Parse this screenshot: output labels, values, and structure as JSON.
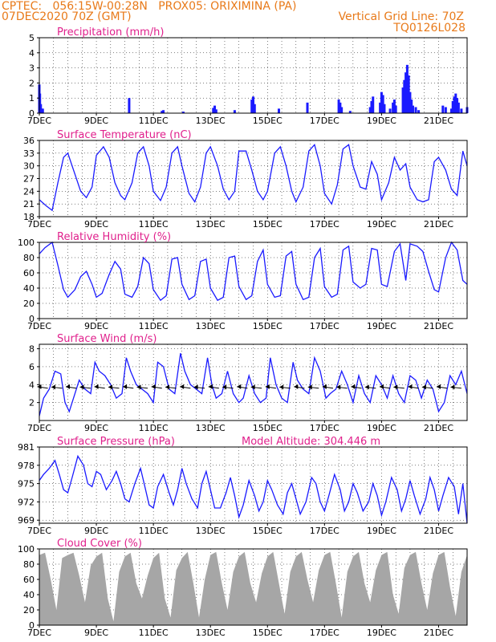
{
  "header": {
    "line1": "CPTEC:   056:15W-00:28N   PROX05: ORIXIMINA (PA)",
    "line2_left": "07DEC2020 70Z (GMT)",
    "line2_right": "Vertical Grid Line: 70Z",
    "line3_right": "TQ0126L028"
  },
  "chart_data": [
    {
      "type": "bar",
      "title": "Precipitation (mm/h)",
      "ylim": [
        0,
        5
      ],
      "yticks": [
        "0",
        "1",
        "2",
        "3",
        "4",
        "5"
      ],
      "xlabels": [
        "7DEC",
        "9DEC",
        "11DEC",
        "13DEC",
        "15DEC",
        "17DEC",
        "19DEC",
        "21DEC"
      ],
      "bars": [
        [
          7.0,
          1.9
        ],
        [
          7.02,
          1.3
        ],
        [
          7.05,
          0.6
        ],
        [
          7.08,
          0.3
        ],
        [
          7.12,
          0.3
        ],
        [
          10.15,
          1.0
        ],
        [
          11.3,
          0.15
        ],
        [
          11.35,
          0.2
        ],
        [
          12.05,
          0.1
        ],
        [
          13.1,
          0.35
        ],
        [
          13.15,
          0.5
        ],
        [
          13.2,
          0.25
        ],
        [
          13.85,
          0.2
        ],
        [
          14.45,
          0.9
        ],
        [
          14.5,
          1.1
        ],
        [
          14.55,
          0.6
        ],
        [
          15.4,
          0.3
        ],
        [
          16.4,
          0.7
        ],
        [
          17.5,
          0.9
        ],
        [
          17.55,
          0.7
        ],
        [
          17.6,
          0.4
        ],
        [
          17.9,
          0.15
        ],
        [
          18.6,
          0.4
        ],
        [
          18.65,
          0.8
        ],
        [
          18.7,
          1.1
        ],
        [
          18.95,
          0.7
        ],
        [
          19.0,
          1.4
        ],
        [
          19.05,
          1.2
        ],
        [
          19.1,
          0.6
        ],
        [
          19.3,
          0.3
        ],
        [
          19.4,
          0.7
        ],
        [
          19.45,
          0.9
        ],
        [
          19.5,
          0.5
        ],
        [
          19.75,
          1.7
        ],
        [
          19.8,
          2.2
        ],
        [
          19.85,
          2.7
        ],
        [
          19.9,
          3.2
        ],
        [
          19.95,
          2.5
        ],
        [
          20.0,
          1.4
        ],
        [
          20.05,
          0.9
        ],
        [
          20.1,
          0.5
        ],
        [
          20.2,
          0.4
        ],
        [
          20.3,
          0.2
        ],
        [
          21.15,
          0.5
        ],
        [
          21.25,
          0.4
        ],
        [
          21.45,
          0.3
        ],
        [
          21.5,
          0.8
        ],
        [
          21.55,
          1.1
        ],
        [
          21.6,
          1.3
        ],
        [
          21.65,
          1.0
        ],
        [
          21.7,
          0.7
        ],
        [
          21.8,
          0.3
        ],
        [
          22.0,
          0.4
        ]
      ]
    },
    {
      "type": "line",
      "title": "Surface Temperature (nC)",
      "ylim": [
        18,
        36
      ],
      "yticks": [
        "18",
        "21",
        "24",
        "27",
        "30",
        "33",
        "36"
      ],
      "xlabels": [
        "7DEC",
        "9DEC",
        "11DEC",
        "13DEC",
        "15DEC",
        "17DEC",
        "19DEC",
        "21DEC"
      ],
      "x": [
        7.0,
        7.25,
        7.45,
        7.65,
        7.85,
        8.0,
        8.25,
        8.45,
        8.65,
        8.85,
        9.0,
        9.25,
        9.45,
        9.65,
        9.85,
        10.0,
        10.25,
        10.45,
        10.65,
        10.85,
        11.0,
        11.25,
        11.45,
        11.65,
        11.85,
        12.0,
        12.25,
        12.45,
        12.65,
        12.85,
        13.0,
        13.25,
        13.45,
        13.65,
        13.85,
        14.0,
        14.25,
        14.45,
        14.65,
        14.85,
        15.0,
        15.25,
        15.45,
        15.65,
        15.85,
        16.0,
        16.25,
        16.45,
        16.65,
        16.85,
        17.0,
        17.25,
        17.45,
        17.65,
        17.85,
        18.0,
        18.25,
        18.45,
        18.65,
        18.85,
        19.0,
        19.25,
        19.45,
        19.65,
        19.85,
        20.0,
        20.25,
        20.45,
        20.65,
        20.85,
        21.0,
        21.25,
        21.45,
        21.65,
        21.85,
        22.0
      ],
      "y": [
        22,
        20.5,
        19.5,
        26,
        32,
        33,
        28,
        24,
        22.5,
        25,
        32.5,
        34.5,
        32,
        26,
        23,
        22,
        26,
        33,
        34.5,
        30,
        24,
        21.8,
        25,
        33,
        34.5,
        30,
        23.5,
        21.5,
        25,
        33,
        34.5,
        30,
        24.5,
        22,
        24,
        33.5,
        33.5,
        29,
        24,
        22,
        24,
        33,
        34.5,
        30,
        24,
        21.5,
        25,
        33.5,
        35,
        30,
        23.5,
        21,
        25.5,
        34,
        35,
        30,
        25,
        24.5,
        31,
        28,
        22,
        26,
        32,
        29,
        30.5,
        25,
        22,
        21.5,
        22,
        31,
        32,
        29,
        24.5,
        23,
        33.5,
        30
      ]
    },
    {
      "type": "line",
      "title": "Relative Humidity (%)",
      "ylim": [
        0,
        100
      ],
      "yticks": [
        "0",
        "20",
        "40",
        "60",
        "80",
        "100"
      ],
      "xlabels": [
        "7DEC",
        "9DEC",
        "11DEC",
        "13DEC",
        "15DEC",
        "17DEC",
        "19DEC",
        "21DEC"
      ],
      "x": [
        7.0,
        7.2,
        7.45,
        7.65,
        7.85,
        8.0,
        8.25,
        8.45,
        8.65,
        8.85,
        9.0,
        9.2,
        9.45,
        9.65,
        9.85,
        10.0,
        10.25,
        10.45,
        10.65,
        10.85,
        11.0,
        11.25,
        11.45,
        11.65,
        11.85,
        12.0,
        12.25,
        12.45,
        12.65,
        12.85,
        13.0,
        13.25,
        13.45,
        13.65,
        13.85,
        14.0,
        14.25,
        14.45,
        14.65,
        14.85,
        15.0,
        15.25,
        15.45,
        15.65,
        15.85,
        16.0,
        16.25,
        16.45,
        16.65,
        16.85,
        17.0,
        17.25,
        17.45,
        17.65,
        17.85,
        18.0,
        18.25,
        18.45,
        18.65,
        18.85,
        19.0,
        19.2,
        19.45,
        19.65,
        19.85,
        20.0,
        20.25,
        20.45,
        20.65,
        20.85,
        21.0,
        21.25,
        21.45,
        21.65,
        21.85,
        22.0
      ],
      "y": [
        85,
        93,
        100,
        70,
        38,
        28,
        38,
        55,
        62,
        45,
        28,
        33,
        58,
        75,
        65,
        32,
        28,
        42,
        80,
        72,
        38,
        24,
        30,
        78,
        80,
        45,
        25,
        30,
        75,
        78,
        40,
        24,
        28,
        80,
        82,
        42,
        25,
        30,
        75,
        90,
        45,
        28,
        30,
        82,
        88,
        45,
        25,
        28,
        80,
        92,
        42,
        28,
        32,
        90,
        95,
        48,
        40,
        45,
        92,
        90,
        45,
        42,
        88,
        98,
        50,
        98,
        95,
        88,
        62,
        38,
        35,
        80,
        100,
        90,
        50,
        45
      ]
    },
    {
      "type": "line",
      "title": "Surface Wind (m/s)",
      "ylim": [
        0,
        8.5
      ],
      "yticks": [
        "2",
        "4",
        "6",
        "8"
      ],
      "xlabels": [
        "7DEC",
        "9DEC",
        "11DEC",
        "13DEC",
        "15DEC",
        "17DEC",
        "19DEC",
        "21DEC"
      ],
      "x": [
        7.0,
        7.15,
        7.35,
        7.55,
        7.75,
        7.9,
        8.05,
        8.2,
        8.4,
        8.6,
        8.8,
        8.95,
        9.1,
        9.3,
        9.5,
        9.7,
        9.9,
        10.05,
        10.2,
        10.4,
        10.6,
        10.8,
        11.0,
        11.15,
        11.35,
        11.55,
        11.75,
        11.95,
        12.1,
        12.3,
        12.5,
        12.7,
        12.9,
        13.05,
        13.2,
        13.4,
        13.6,
        13.8,
        14.0,
        14.15,
        14.35,
        14.55,
        14.75,
        14.95,
        15.1,
        15.3,
        15.5,
        15.7,
        15.9,
        16.05,
        16.25,
        16.45,
        16.65,
        16.85,
        17.05,
        17.2,
        17.4,
        17.6,
        17.8,
        18.0,
        18.2,
        18.4,
        18.6,
        18.8,
        19.0,
        19.2,
        19.4,
        19.6,
        19.8,
        20.0,
        20.2,
        20.4,
        20.6,
        20.8,
        21.0,
        21.2,
        21.4,
        21.6,
        21.8,
        22.0
      ],
      "y": [
        0.5,
        2.5,
        3.5,
        5.5,
        5.2,
        2.0,
        1.0,
        2.5,
        4.5,
        3.5,
        3.0,
        6.5,
        5.5,
        5.0,
        4.0,
        2.5,
        3.0,
        7.0,
        5.5,
        4.0,
        3.5,
        3.0,
        2.0,
        6.5,
        6.0,
        3.5,
        3.0,
        7.5,
        5.5,
        4.0,
        3.5,
        3.0,
        7.0,
        4.0,
        2.5,
        3.0,
        5.5,
        3.0,
        2.0,
        2.5,
        5.0,
        3.0,
        2.0,
        2.5,
        7.0,
        4.0,
        2.5,
        2.0,
        6.5,
        4.5,
        3.5,
        3.0,
        7.0,
        5.5,
        2.5,
        3.0,
        3.5,
        5.5,
        4.0,
        2.0,
        5.0,
        3.0,
        2.0,
        5.0,
        4.0,
        2.5,
        5.0,
        3.0,
        2.0,
        5.0,
        4.5,
        2.5,
        4.5,
        3.5,
        1.0,
        2.0,
        5.0,
        4.0,
        5.5,
        3.0
      ]
    },
    {
      "type": "line",
      "title": "Surface Pressure (hPa)",
      "subtitle": "Model Altitude: 304.446 m",
      "ylim": [
        968.5,
        981
      ],
      "yticks": [
        "969",
        "972",
        "975",
        "978",
        "981"
      ],
      "xlabels": [
        "7DEC",
        "9DEC",
        "11DEC",
        "13DEC",
        "15DEC",
        "17DEC",
        "19DEC",
        "21DEC"
      ],
      "x": [
        7.0,
        7.15,
        7.35,
        7.55,
        7.7,
        7.85,
        8.0,
        8.15,
        8.35,
        8.55,
        8.7,
        8.85,
        9.0,
        9.15,
        9.35,
        9.55,
        9.7,
        9.85,
        10.0,
        10.15,
        10.35,
        10.55,
        10.7,
        10.85,
        11.0,
        11.15,
        11.35,
        11.55,
        11.7,
        11.85,
        12.0,
        12.15,
        12.35,
        12.55,
        12.7,
        12.85,
        13.0,
        13.15,
        13.35,
        13.55,
        13.7,
        13.85,
        14.0,
        14.15,
        14.35,
        14.55,
        14.7,
        14.85,
        15.0,
        15.15,
        15.35,
        15.55,
        15.7,
        15.85,
        16.0,
        16.15,
        16.35,
        16.55,
        16.7,
        16.85,
        17.0,
        17.15,
        17.35,
        17.55,
        17.7,
        17.85,
        18.0,
        18.15,
        18.35,
        18.55,
        18.7,
        18.85,
        19.0,
        19.15,
        19.35,
        19.55,
        19.7,
        19.85,
        20.0,
        20.15,
        20.35,
        20.55,
        20.7,
        20.85,
        21.0,
        21.15,
        21.35,
        21.55,
        21.7,
        21.85,
        22.0
      ],
      "y": [
        975.5,
        976.5,
        977.5,
        978.8,
        976.5,
        974,
        973.5,
        976,
        979.5,
        978,
        975,
        974.5,
        977,
        976.5,
        974,
        975.5,
        977,
        975,
        972.5,
        972,
        975,
        977.5,
        974.5,
        971.5,
        971,
        974.5,
        976.5,
        973.5,
        971.5,
        974,
        977.5,
        975,
        972.5,
        971,
        975,
        977,
        974,
        971,
        971,
        973.5,
        976,
        973,
        969.5,
        971.5,
        975.5,
        973,
        970.5,
        972,
        975.5,
        974,
        971.5,
        970,
        973.5,
        975,
        972.5,
        970,
        972,
        976,
        975,
        972,
        970.5,
        973,
        976.5,
        974,
        970.5,
        972,
        975,
        973.5,
        970.5,
        972,
        975,
        973,
        969.8,
        972,
        976,
        974,
        970.5,
        972.5,
        975.5,
        973,
        970,
        972.5,
        976,
        974,
        970.5,
        973,
        976,
        974.5,
        970,
        975,
        968.5
      ]
    },
    {
      "type": "area",
      "title": "Cloud Cover (%)",
      "ylim": [
        0,
        100
      ],
      "yticks": [
        "0",
        "20",
        "40",
        "60",
        "80",
        "100"
      ],
      "xlabels": [
        "7DEC",
        "9DEC",
        "11DEC",
        "13DEC",
        "15DEC",
        "17DEC",
        "19DEC",
        "21DEC"
      ],
      "x": [
        7.0,
        7.2,
        7.4,
        7.6,
        7.8,
        8.0,
        8.2,
        8.4,
        8.6,
        8.8,
        9.0,
        9.2,
        9.4,
        9.6,
        9.8,
        10.0,
        10.2,
        10.4,
        10.6,
        10.8,
        11.0,
        11.2,
        11.4,
        11.6,
        11.8,
        12.0,
        12.2,
        12.4,
        12.6,
        12.8,
        13.0,
        13.2,
        13.4,
        13.6,
        13.8,
        14.0,
        14.2,
        14.4,
        14.6,
        14.8,
        15.0,
        15.2,
        15.4,
        15.6,
        15.8,
        16.0,
        16.2,
        16.4,
        16.6,
        16.8,
        17.0,
        17.2,
        17.4,
        17.6,
        17.8,
        18.0,
        18.2,
        18.4,
        18.6,
        18.8,
        19.0,
        19.2,
        19.4,
        19.6,
        19.8,
        20.0,
        20.2,
        20.4,
        20.6,
        20.8,
        21.0,
        21.2,
        21.4,
        21.6,
        21.8,
        22.0
      ],
      "y": [
        92,
        95,
        60,
        20,
        88,
        92,
        95,
        65,
        30,
        78,
        90,
        95,
        35,
        5,
        70,
        90,
        95,
        55,
        35,
        65,
        88,
        95,
        35,
        10,
        72,
        88,
        96,
        55,
        10,
        60,
        92,
        96,
        55,
        20,
        70,
        90,
        96,
        55,
        30,
        68,
        90,
        96,
        55,
        15,
        70,
        90,
        96,
        60,
        30,
        72,
        92,
        96,
        55,
        10,
        70,
        90,
        96,
        55,
        30,
        72,
        92,
        96,
        40,
        15,
        75,
        92,
        96,
        55,
        20,
        68,
        92,
        96,
        50,
        12,
        70,
        92
      ]
    }
  ]
}
